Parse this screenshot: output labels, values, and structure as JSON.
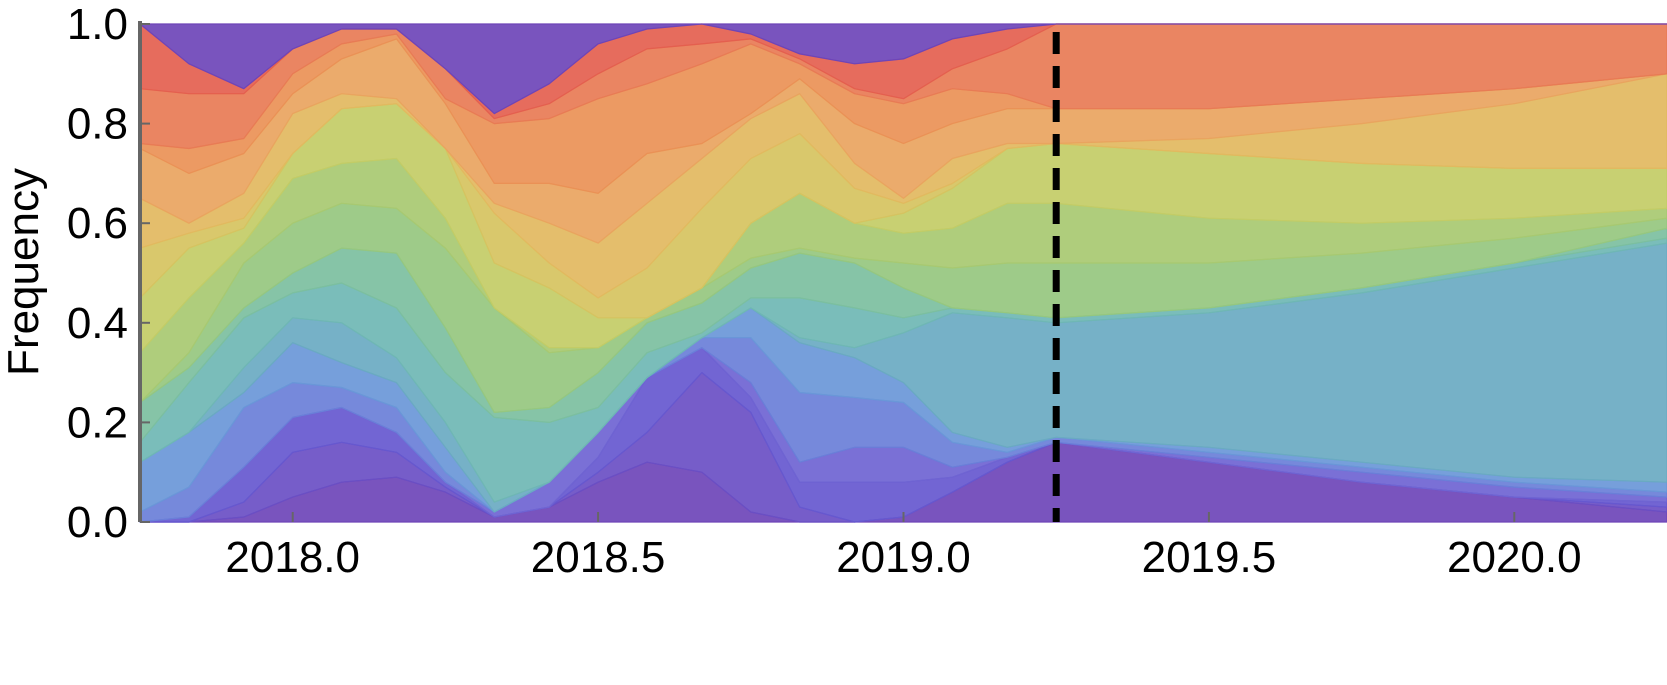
{
  "chart_data": {
    "type": "area",
    "stacked": true,
    "normalized": true,
    "title": "",
    "xlabel": "",
    "ylabel": "Frequency",
    "xlim": [
      2017.75,
      2020.25
    ],
    "ylim": [
      0,
      1
    ],
    "xticks": [
      {
        "value": 2018.0,
        "label": "2018.0"
      },
      {
        "value": 2018.5,
        "label": "2018.5"
      },
      {
        "value": 2019.0,
        "label": "2019.0"
      },
      {
        "value": 2019.5,
        "label": "2019.5"
      },
      {
        "value": 2020.0,
        "label": "2020.0"
      }
    ],
    "yticks": [
      {
        "value": 0.0,
        "label": "0.0"
      },
      {
        "value": 0.2,
        "label": "0.2"
      },
      {
        "value": 0.4,
        "label": "0.4"
      },
      {
        "value": 0.6,
        "label": "0.6"
      },
      {
        "value": 0.8,
        "label": "0.8"
      },
      {
        "value": 1.0,
        "label": "1.0"
      }
    ],
    "grid": false,
    "legend": "none",
    "vline": {
      "x": 2019.25,
      "style": "dashed",
      "color": "#000000"
    },
    "x": [
      2017.75,
      2017.83,
      2017.92,
      2018.0,
      2018.08,
      2018.17,
      2018.25,
      2018.33,
      2018.42,
      2018.5,
      2018.58,
      2018.67,
      2018.75,
      2018.83,
      2018.92,
      2019.0,
      2019.08,
      2019.17,
      2019.25,
      2019.5,
      2019.75,
      2020.0,
      2020.25
    ],
    "boundaries": [
      [
        0.0,
        0.0,
        0.01,
        0.05,
        0.08,
        0.09,
        0.06,
        0.01,
        0.03,
        0.08,
        0.12,
        0.1,
        0.02,
        0.0,
        0.0,
        0.01,
        0.06,
        0.12,
        0.16,
        0.12,
        0.08,
        0.05,
        0.02
      ],
      [
        0.0,
        0.0,
        0.04,
        0.14,
        0.16,
        0.14,
        0.07,
        0.01,
        0.03,
        0.1,
        0.18,
        0.3,
        0.22,
        0.03,
        0.0,
        0.01,
        0.06,
        0.12,
        0.16,
        0.12,
        0.08,
        0.05,
        0.03
      ],
      [
        0.0,
        0.01,
        0.11,
        0.21,
        0.23,
        0.18,
        0.08,
        0.01,
        0.03,
        0.13,
        0.29,
        0.35,
        0.25,
        0.08,
        0.08,
        0.08,
        0.09,
        0.13,
        0.16,
        0.12,
        0.08,
        0.05,
        0.04
      ],
      [
        0.0,
        0.01,
        0.11,
        0.21,
        0.23,
        0.18,
        0.08,
        0.02,
        0.08,
        0.18,
        0.29,
        0.35,
        0.28,
        0.12,
        0.15,
        0.15,
        0.11,
        0.13,
        0.16,
        0.13,
        0.1,
        0.07,
        0.05
      ],
      [
        0.02,
        0.07,
        0.23,
        0.28,
        0.27,
        0.23,
        0.1,
        0.02,
        0.08,
        0.18,
        0.29,
        0.37,
        0.37,
        0.26,
        0.25,
        0.24,
        0.16,
        0.14,
        0.17,
        0.14,
        0.11,
        0.08,
        0.06
      ],
      [
        0.12,
        0.18,
        0.26,
        0.36,
        0.32,
        0.28,
        0.15,
        0.02,
        0.08,
        0.18,
        0.29,
        0.37,
        0.43,
        0.36,
        0.33,
        0.28,
        0.18,
        0.15,
        0.17,
        0.15,
        0.12,
        0.09,
        0.08
      ],
      [
        0.12,
        0.18,
        0.31,
        0.41,
        0.4,
        0.33,
        0.2,
        0.04,
        0.08,
        0.18,
        0.29,
        0.37,
        0.43,
        0.37,
        0.35,
        0.38,
        0.42,
        0.41,
        0.4,
        0.42,
        0.46,
        0.51,
        0.56
      ],
      [
        0.16,
        0.28,
        0.41,
        0.46,
        0.48,
        0.43,
        0.3,
        0.21,
        0.2,
        0.23,
        0.34,
        0.38,
        0.45,
        0.45,
        0.43,
        0.41,
        0.43,
        0.42,
        0.41,
        0.43,
        0.47,
        0.52,
        0.57
      ],
      [
        0.24,
        0.31,
        0.43,
        0.5,
        0.55,
        0.54,
        0.39,
        0.22,
        0.23,
        0.3,
        0.4,
        0.44,
        0.51,
        0.54,
        0.52,
        0.47,
        0.43,
        0.42,
        0.41,
        0.43,
        0.47,
        0.52,
        0.59
      ],
      [
        0.24,
        0.34,
        0.52,
        0.6,
        0.64,
        0.63,
        0.55,
        0.43,
        0.34,
        0.35,
        0.41,
        0.47,
        0.53,
        0.55,
        0.53,
        0.52,
        0.51,
        0.52,
        0.52,
        0.52,
        0.54,
        0.57,
        0.61
      ],
      [
        0.34,
        0.45,
        0.56,
        0.69,
        0.72,
        0.73,
        0.61,
        0.43,
        0.35,
        0.35,
        0.41,
        0.47,
        0.6,
        0.66,
        0.6,
        0.58,
        0.59,
        0.64,
        0.64,
        0.61,
        0.6,
        0.61,
        0.63
      ],
      [
        0.45,
        0.55,
        0.59,
        0.74,
        0.83,
        0.84,
        0.75,
        0.52,
        0.47,
        0.41,
        0.41,
        0.47,
        0.6,
        0.66,
        0.6,
        0.62,
        0.67,
        0.75,
        0.76,
        0.74,
        0.72,
        0.71,
        0.71
      ],
      [
        0.55,
        0.58,
        0.61,
        0.74,
        0.83,
        0.84,
        0.75,
        0.62,
        0.52,
        0.45,
        0.51,
        0.63,
        0.73,
        0.78,
        0.67,
        0.64,
        0.68,
        0.75,
        0.76,
        0.74,
        0.72,
        0.71,
        0.71
      ],
      [
        0.65,
        0.6,
        0.66,
        0.82,
        0.86,
        0.85,
        0.75,
        0.64,
        0.6,
        0.56,
        0.64,
        0.73,
        0.81,
        0.86,
        0.72,
        0.65,
        0.73,
        0.76,
        0.76,
        0.77,
        0.8,
        0.84,
        0.9
      ],
      [
        0.75,
        0.7,
        0.74,
        0.86,
        0.93,
        0.97,
        0.84,
        0.68,
        0.68,
        0.66,
        0.74,
        0.76,
        0.82,
        0.89,
        0.8,
        0.76,
        0.8,
        0.83,
        0.83,
        0.83,
        0.85,
        0.87,
        0.9
      ],
      [
        0.76,
        0.75,
        0.77,
        0.9,
        0.96,
        0.98,
        0.85,
        0.8,
        0.81,
        0.85,
        0.88,
        0.92,
        0.96,
        0.92,
        0.86,
        0.84,
        0.87,
        0.86,
        0.83,
        0.83,
        0.85,
        0.87,
        0.9
      ],
      [
        0.87,
        0.86,
        0.86,
        0.95,
        0.99,
        0.99,
        0.91,
        0.81,
        0.84,
        0.9,
        0.95,
        0.96,
        0.97,
        0.93,
        0.87,
        0.85,
        0.91,
        0.95,
        1.0,
        1.0,
        1.0,
        1.0,
        1.0
      ],
      [
        1.0,
        0.92,
        0.87,
        0.95,
        0.99,
        0.99,
        0.91,
        0.82,
        0.88,
        0.96,
        0.99,
        1.0,
        0.98,
        0.94,
        0.92,
        0.93,
        0.97,
        0.99,
        1.0,
        1.0,
        1.0,
        1.0,
        1.0
      ],
      [
        1.0,
        1.0,
        1.0,
        1.0,
        1.0,
        1.0,
        1.0,
        1.0,
        1.0,
        1.0,
        1.0,
        1.0,
        1.0,
        1.0,
        1.0,
        1.0,
        1.0,
        1.0,
        1.0,
        1.0,
        1.0,
        1.0,
        1.0
      ]
    ],
    "colors": [
      "#6e45b8",
      "#6a4fc4",
      "#6658cf",
      "#6f64d2",
      "#6a7fd8",
      "#6a97d8",
      "#6aaac2",
      "#6fb7b4",
      "#7cbf9f",
      "#96c77f",
      "#a8c971",
      "#c3cc66",
      "#d6c360",
      "#e2b95f",
      "#e9a45f",
      "#ea9156",
      "#e87b55",
      "#e45f4f"
    ]
  }
}
